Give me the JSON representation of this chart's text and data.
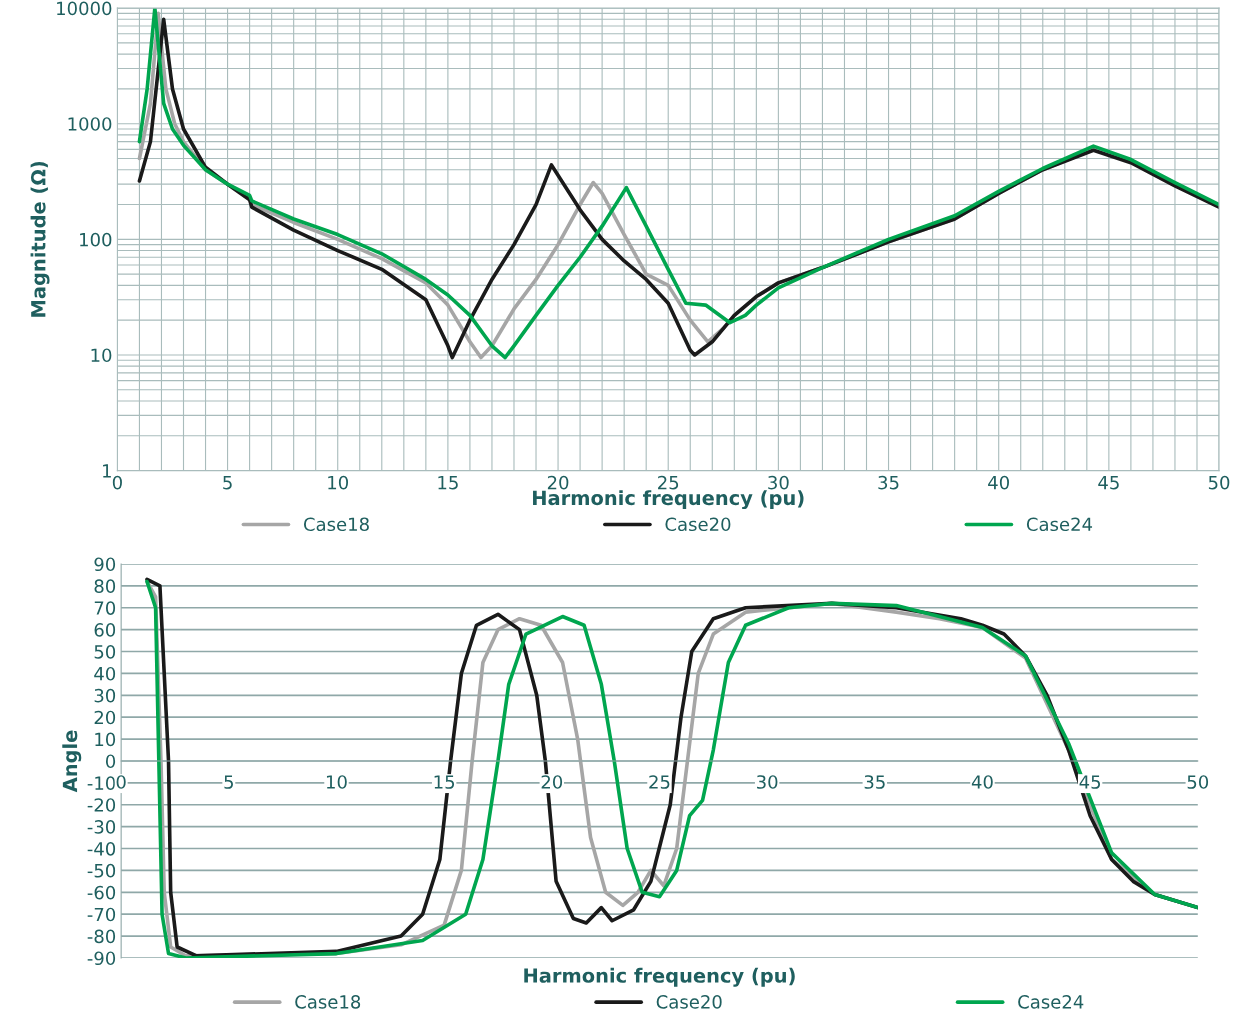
{
  "chart_data": [
    {
      "type": "line",
      "xlabel": "Harmonic frequency (pu)",
      "ylabel": "Magnitude (Ω)",
      "log": "y",
      "xlim": [
        0,
        50
      ],
      "ylim": [
        1,
        10000
      ],
      "xticks": [
        0,
        5,
        10,
        15,
        20,
        25,
        30,
        35,
        40,
        45,
        50
      ],
      "yticks": [
        1,
        10,
        100,
        1000,
        10000
      ],
      "grid": true,
      "legend": "bottom",
      "line_style": "solid",
      "marker": "none",
      "series": [
        {
          "name": "Case18",
          "color": "#a6a6a6",
          "x": [
            1,
            1.5,
            1.85,
            2.2,
            2.6,
            3,
            4,
            5,
            6,
            6.1,
            8,
            10,
            12,
            14,
            15,
            16,
            16.5,
            17,
            18,
            19,
            20,
            21,
            21.6,
            22,
            23,
            24,
            25,
            26,
            26.8,
            27.5,
            28,
            29,
            30,
            32,
            35,
            38,
            40,
            42,
            44.3,
            46,
            48,
            50
          ],
          "values": [
            500,
            1500,
            9000,
            2000,
            1000,
            700,
            400,
            300,
            230,
            200,
            140,
            100,
            68,
            42,
            27,
            13,
            9.5,
            12,
            25,
            45,
            90,
            200,
            310,
            250,
            110,
            50,
            40,
            20,
            13,
            17,
            22,
            32,
            42,
            57,
            95,
            150,
            250,
            400,
            600,
            470,
            300,
            195
          ]
        },
        {
          "name": "Case20",
          "color": "#1a1a1a",
          "x": [
            1,
            1.5,
            2.1,
            2.5,
            3,
            4,
            5,
            6,
            6.1,
            8,
            10,
            12,
            14,
            15,
            15.2,
            16,
            17,
            18,
            19,
            19.7,
            21,
            22,
            23,
            24,
            25,
            26,
            26.2,
            27,
            28,
            29,
            30,
            32,
            35,
            38,
            40,
            42,
            44.3,
            46,
            48,
            50
          ],
          "values": [
            320,
            700,
            8000,
            2000,
            900,
            420,
            300,
            220,
            190,
            120,
            80,
            55,
            30,
            12,
            9.5,
            20,
            45,
            90,
            200,
            440,
            180,
            100,
            65,
            45,
            28,
            11,
            10,
            13,
            22,
            32,
            42,
            57,
            95,
            150,
            250,
            400,
            590,
            460,
            290,
            190
          ]
        },
        {
          "name": "Case24",
          "color": "#00a64f",
          "x": [
            1,
            1.35,
            1.7,
            2.1,
            2.5,
            3,
            4,
            5,
            6,
            6.1,
            8,
            10,
            12,
            14,
            15,
            16,
            17,
            17.6,
            18,
            19,
            20,
            21,
            22,
            23.1,
            24,
            25,
            25.8,
            26.7,
            27.8,
            28.5,
            29,
            30,
            32,
            35,
            38,
            40,
            42,
            44.3,
            46,
            48,
            50
          ],
          "values": [
            700,
            2000,
            10000,
            1500,
            900,
            650,
            400,
            300,
            240,
            215,
            150,
            110,
            75,
            45,
            33,
            22,
            12,
            9.5,
            12,
            22,
            40,
            70,
            130,
            280,
            130,
            55,
            28,
            27,
            19,
            22,
            27,
            38,
            57,
            100,
            160,
            260,
            410,
            640,
            490,
            310,
            200
          ]
        }
      ]
    },
    {
      "type": "line",
      "xlabel": "Harmonic frequency (pu)",
      "ylabel": "Angle",
      "xlim": [
        0,
        50
      ],
      "ylim": [
        -90,
        90
      ],
      "xticks": [
        0,
        5,
        10,
        15,
        20,
        25,
        30,
        35,
        40,
        45,
        50
      ],
      "yticks": [
        -90,
        -80,
        -70,
        -60,
        -50,
        -40,
        -30,
        -20,
        -10,
        0,
        10,
        20,
        30,
        40,
        50,
        60,
        70,
        80,
        90
      ],
      "grid": "y",
      "legend": "bottom",
      "line_style": "solid",
      "marker": "none",
      "series": [
        {
          "name": "Case18",
          "color": "#a6a6a6",
          "x": [
            1.2,
            1.6,
            1.85,
            2.0,
            2.3,
            3,
            10,
            13,
            15,
            15.8,
            16.3,
            16.8,
            17.5,
            18.5,
            19.5,
            20.5,
            21.2,
            21.8,
            22.5,
            23.3,
            24,
            24.6,
            25.2,
            25.8,
            26.3,
            26.8,
            27.5,
            29,
            33,
            36,
            38,
            40,
            42,
            44,
            46,
            48,
            50
          ],
          "values": [
            82,
            75,
            0,
            -60,
            -85,
            -89,
            -88,
            -84,
            -75,
            -50,
            0,
            45,
            60,
            65,
            62,
            45,
            10,
            -35,
            -60,
            -66,
            -60,
            -50,
            -57,
            -40,
            0,
            40,
            58,
            68,
            72,
            68,
            65,
            61,
            47,
            5,
            -45,
            -61,
            -67
          ]
        },
        {
          "name": "Case20",
          "color": "#1a1a1a",
          "x": [
            1.2,
            1.8,
            2.2,
            2.3,
            2.6,
            3.5,
            10,
            13,
            14,
            14.8,
            15.3,
            15.8,
            16.5,
            17.5,
            18.5,
            19.3,
            19.7,
            20.2,
            21,
            21.6,
            22.3,
            22.8,
            23.8,
            24.6,
            25.5,
            26,
            26.5,
            27.5,
            29,
            33,
            36,
            39,
            40,
            41,
            42,
            43,
            44,
            45,
            46,
            47,
            48,
            50
          ],
          "values": [
            83,
            80,
            0,
            -60,
            -85,
            -89,
            -87,
            -80,
            -70,
            -45,
            0,
            40,
            62,
            67,
            60,
            30,
            0,
            -55,
            -72,
            -74,
            -67,
            -73,
            -68,
            -55,
            -20,
            20,
            50,
            65,
            70,
            72,
            70,
            65,
            62,
            58,
            48,
            30,
            5,
            -25,
            -45,
            -55,
            -61,
            -67
          ]
        },
        {
          "name": "Case24",
          "color": "#00a64f",
          "x": [
            1.2,
            1.6,
            1.75,
            1.9,
            2.2,
            3,
            10,
            14,
            16,
            16.8,
            17.5,
            18,
            18.8,
            20.5,
            21.5,
            22.3,
            22.9,
            23.5,
            24.2,
            25,
            25.8,
            26.4,
            27,
            27.5,
            28.2,
            29,
            31,
            33,
            36,
            40,
            42,
            44,
            46,
            48,
            50
          ],
          "values": [
            82,
            70,
            0,
            -70,
            -88,
            -90,
            -88,
            -82,
            -70,
            -45,
            0,
            35,
            58,
            66,
            62,
            35,
            0,
            -40,
            -60,
            -62,
            -50,
            -25,
            -18,
            5,
            45,
            62,
            70,
            72,
            71,
            61,
            48,
            8,
            -42,
            -61,
            -67
          ]
        }
      ]
    }
  ]
}
